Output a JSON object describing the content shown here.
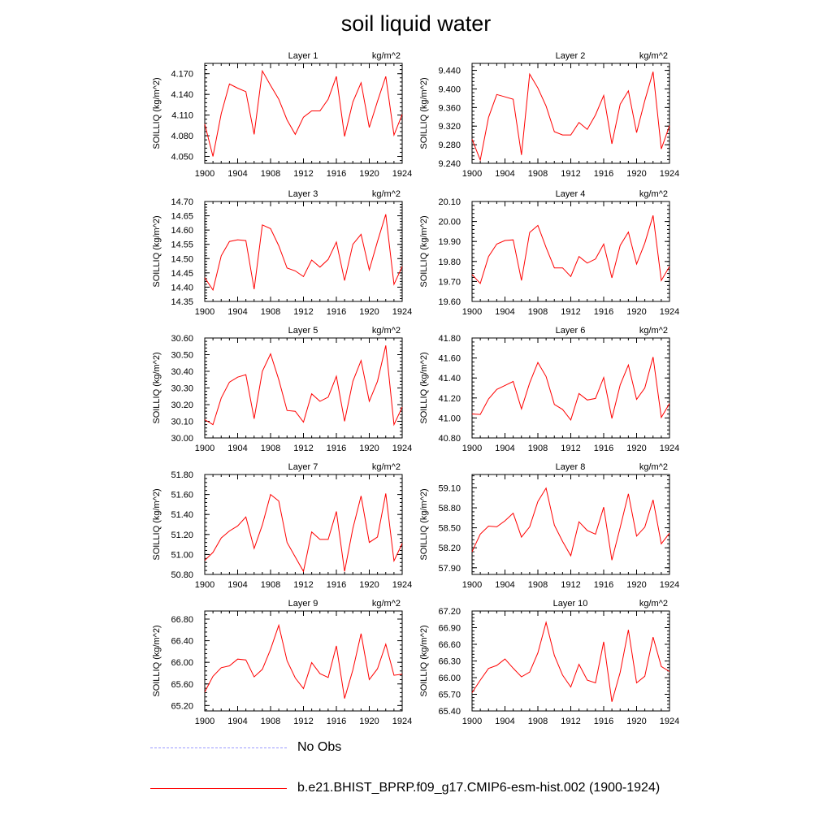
{
  "title": "soil liquid water",
  "legend": [
    {
      "label": "No Obs",
      "color": "#9999ff",
      "style": "dashed"
    },
    {
      "label": "b.e21.BHIST_BPRP.f09_g17.CMIP6-esm-hist.002 (1900-1924)",
      "color": "#ff0000",
      "style": "solid"
    }
  ],
  "chart_data": [
    {
      "type": "line",
      "title": "Layer 1",
      "unit": "kg/m^2",
      "ylabel": "SOILLIQ  (kg/m^2)",
      "x": [
        1900,
        1901,
        1902,
        1903,
        1904,
        1905,
        1906,
        1907,
        1908,
        1909,
        1910,
        1911,
        1912,
        1913,
        1914,
        1915,
        1916,
        1917,
        1918,
        1919,
        1920,
        1921,
        1922,
        1923,
        1924
      ],
      "xlim": [
        1900,
        1924
      ],
      "xticks": [
        1900,
        1904,
        1908,
        1912,
        1916,
        1920,
        1924
      ],
      "ylim": [
        4.04,
        4.185
      ],
      "yticks": [
        4.05,
        4.08,
        4.11,
        4.14,
        4.17
      ],
      "ydec": 3,
      "series": [
        {
          "color": "#ff0000",
          "values": [
            4.097,
            4.05,
            4.112,
            4.155,
            4.149,
            4.144,
            4.082,
            4.174,
            4.153,
            4.133,
            4.103,
            4.082,
            4.107,
            4.116,
            4.116,
            4.133,
            4.166,
            4.079,
            4.129,
            4.157,
            4.092,
            4.13,
            4.166,
            4.081,
            4.111
          ]
        }
      ]
    },
    {
      "type": "line",
      "title": "Layer 2",
      "unit": "kg/m^2",
      "ylabel": "SOILLIQ  (kg/m^2)",
      "x": [
        1900,
        1901,
        1902,
        1903,
        1904,
        1905,
        1906,
        1907,
        1908,
        1909,
        1910,
        1911,
        1912,
        1913,
        1914,
        1915,
        1916,
        1917,
        1918,
        1919,
        1920,
        1921,
        1922,
        1923,
        1924
      ],
      "xlim": [
        1900,
        1924
      ],
      "xticks": [
        1900,
        1904,
        1908,
        1912,
        1916,
        1920,
        1924
      ],
      "ylim": [
        9.24,
        9.455
      ],
      "yticks": [
        9.24,
        9.28,
        9.32,
        9.36,
        9.4,
        9.44
      ],
      "ydec": 3,
      "series": [
        {
          "color": "#ff0000",
          "values": [
            9.292,
            9.247,
            9.339,
            9.388,
            9.383,
            9.378,
            9.258,
            9.432,
            9.402,
            9.363,
            9.308,
            9.301,
            9.301,
            9.328,
            9.313,
            9.344,
            9.386,
            9.282,
            9.367,
            9.396,
            9.306,
            9.375,
            9.437,
            9.271,
            9.321
          ]
        }
      ]
    },
    {
      "type": "line",
      "title": "Layer 3",
      "unit": "kg/m^2",
      "ylabel": "SOILLIQ  (kg/m^2)",
      "x": [
        1900,
        1901,
        1902,
        1903,
        1904,
        1905,
        1906,
        1907,
        1908,
        1909,
        1910,
        1911,
        1912,
        1913,
        1914,
        1915,
        1916,
        1917,
        1918,
        1919,
        1920,
        1921,
        1922,
        1923,
        1924
      ],
      "xlim": [
        1900,
        1924
      ],
      "xticks": [
        1900,
        1904,
        1908,
        1912,
        1916,
        1920,
        1924
      ],
      "ylim": [
        14.35,
        14.7
      ],
      "yticks": [
        14.35,
        14.4,
        14.45,
        14.5,
        14.55,
        14.6,
        14.65,
        14.7
      ],
      "ydec": 2,
      "series": [
        {
          "color": "#ff0000",
          "values": [
            14.433,
            14.39,
            14.51,
            14.56,
            14.566,
            14.563,
            14.393,
            14.618,
            14.605,
            14.545,
            14.467,
            14.457,
            14.437,
            14.495,
            14.47,
            14.497,
            14.558,
            14.423,
            14.55,
            14.585,
            14.46,
            14.56,
            14.655,
            14.41,
            14.472
          ]
        }
      ]
    },
    {
      "type": "line",
      "title": "Layer 4",
      "unit": "kg/m^2",
      "ylabel": "SOILLIQ  (kg/m^2)",
      "x": [
        1900,
        1901,
        1902,
        1903,
        1904,
        1905,
        1906,
        1907,
        1908,
        1909,
        1910,
        1911,
        1912,
        1913,
        1914,
        1915,
        1916,
        1917,
        1918,
        1919,
        1920,
        1921,
        1922,
        1923,
        1924
      ],
      "xlim": [
        1900,
        1924
      ],
      "xticks": [
        1900,
        1904,
        1908,
        1912,
        1916,
        1920,
        1924
      ],
      "ylim": [
        19.6,
        20.1
      ],
      "yticks": [
        19.6,
        19.7,
        19.8,
        19.9,
        20.0,
        20.1
      ],
      "ydec": 2,
      "series": [
        {
          "color": "#ff0000",
          "values": [
            19.735,
            19.69,
            19.825,
            19.887,
            19.905,
            19.908,
            19.705,
            19.945,
            19.98,
            19.87,
            19.768,
            19.768,
            19.725,
            19.825,
            19.792,
            19.812,
            19.887,
            19.718,
            19.88,
            19.947,
            19.787,
            19.892,
            20.03,
            19.705,
            19.775
          ]
        }
      ]
    },
    {
      "type": "line",
      "title": "Layer 5",
      "unit": "kg/m^2",
      "ylabel": "SOILLIQ  (kg/m^2)",
      "x": [
        1900,
        1901,
        1902,
        1903,
        1904,
        1905,
        1906,
        1907,
        1908,
        1909,
        1910,
        1911,
        1912,
        1913,
        1914,
        1915,
        1916,
        1917,
        1918,
        1919,
        1920,
        1921,
        1922,
        1923,
        1924
      ],
      "xlim": [
        1900,
        1924
      ],
      "xticks": [
        1900,
        1904,
        1908,
        1912,
        1916,
        1920,
        1924
      ],
      "ylim": [
        30.0,
        30.6
      ],
      "yticks": [
        30.0,
        30.1,
        30.2,
        30.3,
        30.4,
        30.5,
        30.6
      ],
      "ydec": 2,
      "series": [
        {
          "color": "#ff0000",
          "values": [
            30.11,
            30.08,
            30.24,
            30.335,
            30.365,
            30.38,
            30.115,
            30.4,
            30.505,
            30.35,
            30.165,
            30.16,
            30.095,
            30.265,
            30.22,
            30.245,
            30.37,
            30.1,
            30.34,
            30.465,
            30.22,
            30.34,
            30.555,
            30.08,
            30.185
          ]
        }
      ]
    },
    {
      "type": "line",
      "title": "Layer 6",
      "unit": "kg/m^2",
      "ylabel": "SOILLIQ  (kg/m^2)",
      "x": [
        1900,
        1901,
        1902,
        1903,
        1904,
        1905,
        1906,
        1907,
        1908,
        1909,
        1910,
        1911,
        1912,
        1913,
        1914,
        1915,
        1916,
        1917,
        1918,
        1919,
        1920,
        1921,
        1922,
        1923,
        1924
      ],
      "xlim": [
        1900,
        1924
      ],
      "xticks": [
        1900,
        1904,
        1908,
        1912,
        1916,
        1920,
        1924
      ],
      "ylim": [
        40.8,
        41.8
      ],
      "yticks": [
        40.8,
        41.0,
        41.2,
        41.4,
        41.6,
        41.8
      ],
      "ydec": 2,
      "series": [
        {
          "color": "#ff0000",
          "values": [
            41.04,
            41.035,
            41.19,
            41.285,
            41.325,
            41.365,
            41.09,
            41.35,
            41.555,
            41.415,
            41.135,
            41.085,
            40.98,
            41.245,
            41.18,
            41.195,
            41.405,
            40.995,
            41.33,
            41.53,
            41.185,
            41.3,
            41.61,
            41.005,
            41.145
          ]
        }
      ]
    },
    {
      "type": "line",
      "title": "Layer 7",
      "unit": "kg/m^2",
      "ylabel": "SOILLIQ  (kg/m^2)",
      "x": [
        1900,
        1901,
        1902,
        1903,
        1904,
        1905,
        1906,
        1907,
        1908,
        1909,
        1910,
        1911,
        1912,
        1913,
        1914,
        1915,
        1916,
        1917,
        1918,
        1919,
        1920,
        1921,
        1922,
        1923,
        1924
      ],
      "xlim": [
        1900,
        1924
      ],
      "xticks": [
        1900,
        1904,
        1908,
        1912,
        1916,
        1920,
        1924
      ],
      "ylim": [
        50.8,
        51.8
      ],
      "yticks": [
        50.8,
        51.0,
        51.2,
        51.4,
        51.6,
        51.8
      ],
      "ydec": 2,
      "series": [
        {
          "color": "#ff0000",
          "values": [
            50.94,
            51.02,
            51.165,
            51.235,
            51.285,
            51.375,
            51.06,
            51.295,
            51.6,
            51.535,
            51.12,
            50.975,
            50.83,
            51.225,
            51.15,
            51.15,
            51.43,
            50.83,
            51.26,
            51.585,
            51.12,
            51.175,
            51.61,
            50.935,
            51.11
          ]
        }
      ]
    },
    {
      "type": "line",
      "title": "Layer 8",
      "unit": "kg/m^2",
      "ylabel": "SOILLIQ  (kg/m^2)",
      "x": [
        1900,
        1901,
        1902,
        1903,
        1904,
        1905,
        1906,
        1907,
        1908,
        1909,
        1910,
        1911,
        1912,
        1913,
        1914,
        1915,
        1916,
        1917,
        1918,
        1919,
        1920,
        1921,
        1922,
        1923,
        1924
      ],
      "xlim": [
        1900,
        1924
      ],
      "xticks": [
        1900,
        1904,
        1908,
        1912,
        1916,
        1920,
        1924
      ],
      "ylim": [
        57.8,
        59.3
      ],
      "yticks": [
        57.9,
        58.2,
        58.5,
        58.8,
        59.1
      ],
      "ydec": 2,
      "series": [
        {
          "color": "#ff0000",
          "values": [
            58.14,
            58.405,
            58.525,
            58.515,
            58.605,
            58.72,
            58.36,
            58.515,
            58.895,
            59.095,
            58.54,
            58.295,
            58.08,
            58.59,
            58.46,
            58.405,
            58.81,
            58.015,
            58.505,
            59.01,
            58.375,
            58.51,
            58.92,
            58.26,
            58.42
          ]
        }
      ]
    },
    {
      "type": "line",
      "title": "Layer 9",
      "unit": "kg/m^2",
      "ylabel": "SOILLIQ  (kg/m^2)",
      "x": [
        1900,
        1901,
        1902,
        1903,
        1904,
        1905,
        1906,
        1907,
        1908,
        1909,
        1910,
        1911,
        1912,
        1913,
        1914,
        1915,
        1916,
        1917,
        1918,
        1919,
        1920,
        1921,
        1922,
        1923,
        1924
      ],
      "xlim": [
        1900,
        1924
      ],
      "xticks": [
        1900,
        1904,
        1908,
        1912,
        1916,
        1920,
        1924
      ],
      "ylim": [
        65.1,
        66.95
      ],
      "yticks": [
        65.2,
        65.6,
        66.0,
        66.4,
        66.8
      ],
      "ydec": 2,
      "series": [
        {
          "color": "#ff0000",
          "values": [
            65.45,
            65.74,
            65.9,
            65.935,
            66.06,
            66.045,
            65.73,
            65.87,
            66.24,
            66.685,
            66.03,
            65.71,
            65.515,
            65.995,
            65.79,
            65.72,
            66.305,
            65.33,
            65.86,
            66.53,
            65.68,
            65.88,
            66.335,
            65.76,
            65.78
          ]
        }
      ]
    },
    {
      "type": "line",
      "title": "Layer 10",
      "unit": "kg/m^2",
      "ylabel": "SOILLIQ  (kg/m^2)",
      "x": [
        1900,
        1901,
        1902,
        1903,
        1904,
        1905,
        1906,
        1907,
        1908,
        1909,
        1910,
        1911,
        1912,
        1913,
        1914,
        1915,
        1916,
        1917,
        1918,
        1919,
        1920,
        1921,
        1922,
        1923,
        1924
      ],
      "xlim": [
        1900,
        1924
      ],
      "xticks": [
        1900,
        1904,
        1908,
        1912,
        1916,
        1920,
        1924
      ],
      "ylim": [
        65.4,
        67.2
      ],
      "yticks": [
        65.4,
        65.7,
        66.0,
        66.3,
        66.6,
        66.9,
        67.2
      ],
      "ydec": 2,
      "series": [
        {
          "color": "#ff0000",
          "values": [
            65.73,
            65.955,
            66.165,
            66.22,
            66.335,
            66.17,
            66.015,
            66.1,
            66.445,
            66.995,
            66.4,
            66.045,
            65.83,
            66.24,
            65.955,
            65.905,
            66.645,
            65.565,
            66.095,
            66.86,
            65.905,
            66.025,
            66.73,
            66.2,
            66.11
          ]
        }
      ]
    }
  ]
}
